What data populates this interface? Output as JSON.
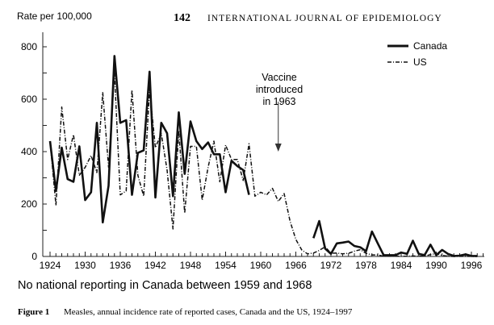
{
  "header": {
    "page_number": "142",
    "journal": "INTERNATIONAL JOURNAL OF EPIDEMIOLOGY"
  },
  "chart_data": {
    "type": "line",
    "title": "",
    "ylabel": "Rate per 100,000",
    "xlabel": "",
    "xlim": [
      1923,
      1998
    ],
    "ylim": [
      0,
      850
    ],
    "x_ticks": [
      1924,
      1930,
      1936,
      1942,
      1948,
      1954,
      1960,
      1966,
      1972,
      1978,
      1984,
      1990,
      1996
    ],
    "y_ticks": [
      0,
      200,
      400,
      600,
      800
    ],
    "legend": {
      "placement": "top-right",
      "entries": [
        "Canada",
        "US"
      ]
    },
    "annotation": {
      "lines": [
        "Vaccine",
        "introduced",
        "in 1963"
      ],
      "x": 1963,
      "arrow_from": 590,
      "arrow_to": 400
    },
    "note": "No national reporting in Canada between 1959 and 1968",
    "series": [
      {
        "name": "Canada",
        "style": "solid",
        "segments": [
          {
            "x": [
              1924,
              1925,
              1926,
              1927,
              1928,
              1929,
              1930,
              1931,
              1932,
              1933,
              1934,
              1935,
              1936,
              1937,
              1938,
              1939,
              1940,
              1941,
              1942,
              1943,
              1944,
              1945,
              1946,
              1947,
              1948,
              1949,
              1950,
              1951,
              1952,
              1953,
              1954,
              1955,
              1956,
              1957,
              1958
            ],
            "y": [
              440,
              250,
              415,
              295,
              285,
              420,
              215,
              245,
              510,
              130,
              270,
              765,
              510,
              520,
              235,
              395,
              405,
              705,
              225,
              510,
              470,
              230,
              550,
              315,
              515,
              440,
              410,
              435,
              390,
              390,
              245,
              365,
              345,
              330,
              235
            ]
          },
          {
            "x": [
              1969,
              1970,
              1971,
              1972,
              1973,
              1974,
              1975,
              1976,
              1977,
              1978,
              1979,
              1980,
              1981,
              1982,
              1983,
              1984,
              1985,
              1986,
              1987,
              1988,
              1989,
              1990,
              1991,
              1992,
              1993,
              1994,
              1995,
              1996,
              1997
            ],
            "y": [
              70,
              135,
              30,
              10,
              50,
              53,
              57,
              40,
              35,
              20,
              95,
              50,
              5,
              5,
              5,
              15,
              10,
              60,
              10,
              5,
              45,
              5,
              25,
              10,
              2,
              3,
              8,
              2,
              2
            ]
          }
        ]
      },
      {
        "name": "US",
        "style": "dash-dot",
        "segments": [
          {
            "x": [
              1924,
              1925,
              1926,
              1927,
              1928,
              1929,
              1930,
              1931,
              1932,
              1933,
              1934,
              1935,
              1936,
              1937,
              1938,
              1939,
              1940,
              1941,
              1942,
              1943,
              1944,
              1945,
              1946,
              1947,
              1948,
              1949,
              1950,
              1951,
              1952,
              1953,
              1954,
              1955,
              1956,
              1957,
              1958,
              1959,
              1960,
              1961,
              1962,
              1963,
              1964,
              1965,
              1966,
              1967,
              1968,
              1969,
              1970,
              1971,
              1972,
              1973,
              1974,
              1975,
              1976,
              1977,
              1978,
              1979,
              1980,
              1981,
              1982,
              1983,
              1984,
              1985,
              1986,
              1987,
              1988,
              1989,
              1990,
              1991,
              1992,
              1993,
              1994,
              1995,
              1996,
              1997
            ],
            "y": [
              440,
              195,
              570,
              370,
              465,
              310,
              340,
              385,
              320,
              625,
              340,
              700,
              235,
              250,
              635,
              310,
              230,
              640,
              415,
              470,
              330,
              105,
              480,
              165,
              420,
              420,
              215,
              340,
              440,
              285,
              425,
              370,
              370,
              290,
              430,
              230,
              245,
              235,
              260,
              210,
              240,
              135,
              65,
              25,
              10,
              13,
              23,
              37,
              12,
              13,
              10,
              12,
              20,
              26,
              12,
              6,
              6,
              1,
              1,
              1,
              1,
              1,
              2,
              1,
              1,
              7,
              11,
              4,
              1,
              0.1,
              0.4,
              0.2,
              0.2,
              0.1
            ]
          }
        ]
      }
    ]
  },
  "caption": {
    "label": "Figure 1",
    "text": "Measles, annual incidence rate of reported cases, Canada and the US, 1924–1997"
  }
}
